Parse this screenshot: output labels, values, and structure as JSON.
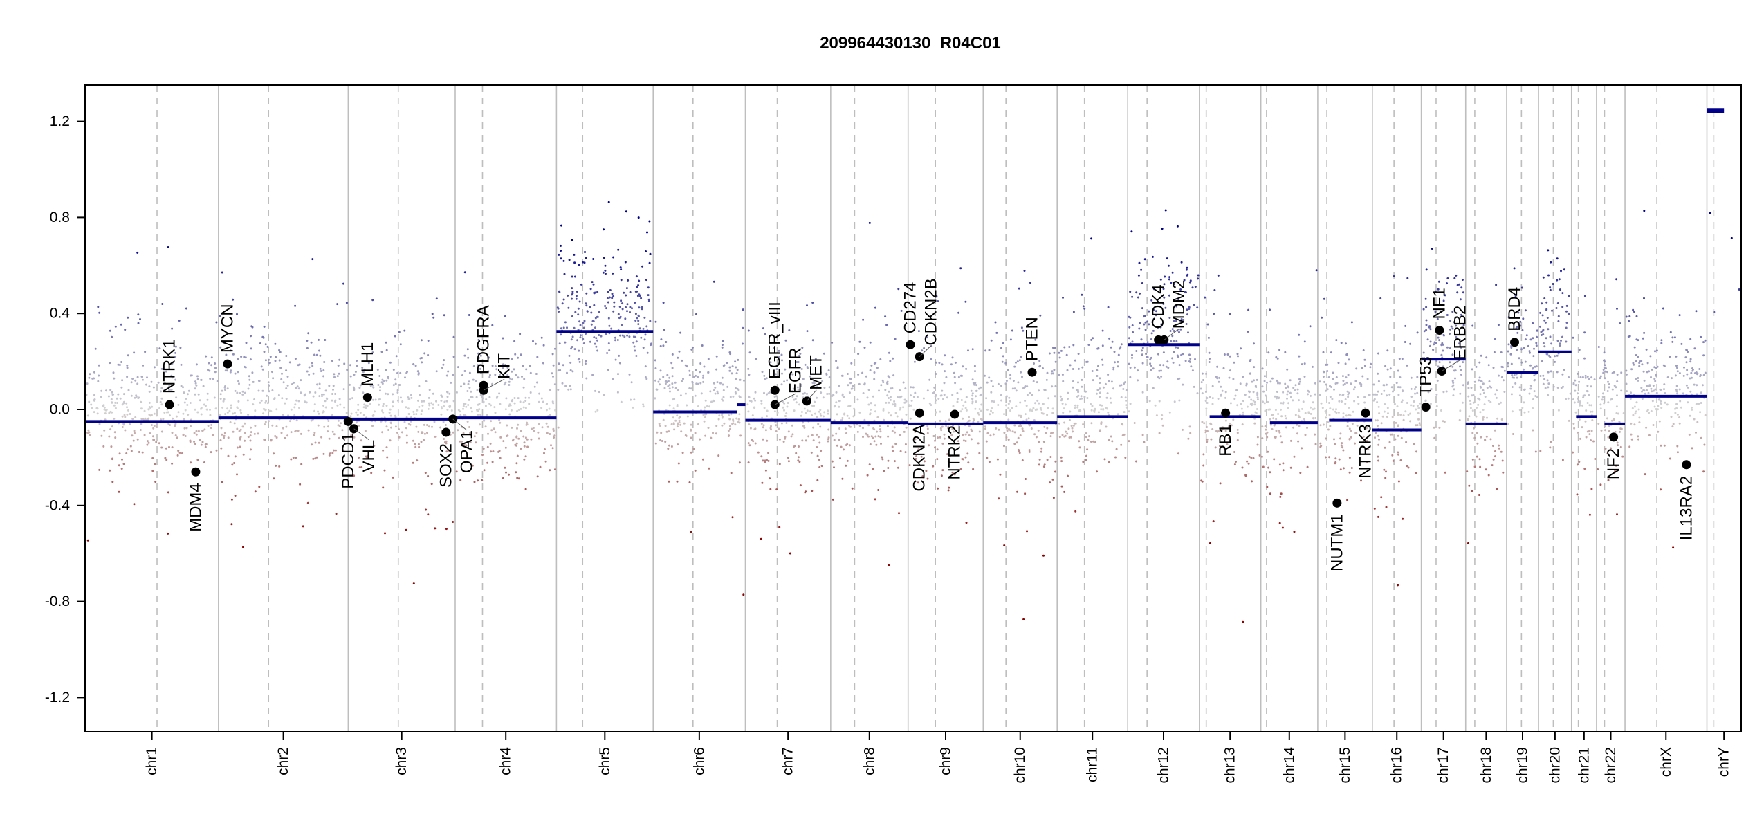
{
  "chart_data": {
    "type": "scatter",
    "title": "209964430130_R04C01",
    "xlabel": "",
    "ylabel": "",
    "ylim": [
      -1.35,
      1.35
    ],
    "y_ticks": [
      "1.2",
      "0.8",
      "0.4",
      "0.0",
      "-0.4",
      "-0.8",
      "-1.2"
    ],
    "y_tick_values": [
      1.2,
      0.8,
      0.4,
      0.0,
      -0.4,
      -0.8,
      -1.2
    ],
    "grid": false,
    "legend": "none",
    "colors": {
      "loss": "#8b0000",
      "neutral": "#d3d3d3",
      "gain": "#00008b",
      "segment": "#00008b",
      "gene": "#000000",
      "chromosome_line": "#bebebe"
    },
    "chromosomes": [
      "chr1",
      "chr2",
      "chr3",
      "chr4",
      "chr5",
      "chr6",
      "chr7",
      "chr8",
      "chr9",
      "chr10",
      "chr11",
      "chr12",
      "chr13",
      "chr14",
      "chr15",
      "chr16",
      "chr17",
      "chr18",
      "chr19",
      "chr20",
      "chr21",
      "chr22",
      "chrX",
      "chrY"
    ],
    "segments": [
      {
        "chr": "chr1",
        "value": -0.05
      },
      {
        "chr": "chr2",
        "value": -0.035
      },
      {
        "chr": "chr3",
        "value": -0.04
      },
      {
        "chr": "chr4",
        "value": -0.035
      },
      {
        "chr": "chr5",
        "value": 0.325
      },
      {
        "chr": "chr6",
        "value": -0.01
      },
      {
        "chr": "chr6",
        "value": 0.02
      },
      {
        "chr": "chr7",
        "value": -0.045
      },
      {
        "chr": "chr8",
        "value": -0.055
      },
      {
        "chr": "chr9",
        "value": -0.06
      },
      {
        "chr": "chr10",
        "value": -0.055
      },
      {
        "chr": "chr11",
        "value": -0.03
      },
      {
        "chr": "chr12",
        "value": 0.27
      },
      {
        "chr": "chr13",
        "value": -0.03
      },
      {
        "chr": "chr14",
        "value": -0.055
      },
      {
        "chr": "chr15",
        "value": -0.045
      },
      {
        "chr": "chr16",
        "value": -0.085
      },
      {
        "chr": "chr17",
        "value": 0.21
      },
      {
        "chr": "chr18",
        "value": -0.06
      },
      {
        "chr": "chr19",
        "value": 0.155
      },
      {
        "chr": "chr20",
        "value": 0.24
      },
      {
        "chr": "chr21",
        "value": -0.03
      },
      {
        "chr": "chr22",
        "value": -0.06
      },
      {
        "chr": "chrX",
        "value": 0.055
      },
      {
        "chr": "chrY",
        "value": 1.24
      },
      {
        "chr": "chrY",
        "value": 1.25
      }
    ],
    "genes": [
      {
        "name": "NTRK1",
        "chr": "chr1",
        "value": 0.02
      },
      {
        "name": "MDM4",
        "chr": "chr1",
        "value": -0.26
      },
      {
        "name": "MYCN",
        "chr": "chr2",
        "value": 0.19
      },
      {
        "name": "PDCD1",
        "chr": "chr2",
        "value": -0.05
      },
      {
        "name": "VHL",
        "chr": "chr3",
        "value": -0.08
      },
      {
        "name": "MLH1",
        "chr": "chr3",
        "value": 0.05
      },
      {
        "name": "SOX2",
        "chr": "chr3",
        "value": -0.095
      },
      {
        "name": "OPA1",
        "chr": "chr3",
        "value": -0.04
      },
      {
        "name": "PDGFRA",
        "chr": "chr4",
        "value": 0.1
      },
      {
        "name": "KIT",
        "chr": "chr4",
        "value": 0.08
      },
      {
        "name": "EGFR_vIII",
        "chr": "chr7",
        "value": 0.08
      },
      {
        "name": "EGFR",
        "chr": "chr7",
        "value": 0.02
      },
      {
        "name": "MET",
        "chr": "chr7",
        "value": 0.035
      },
      {
        "name": "CD274",
        "chr": "chr9",
        "value": 0.27
      },
      {
        "name": "CDKN2B",
        "chr": "chr9",
        "value": 0.22
      },
      {
        "name": "CDKN2A",
        "chr": "chr9",
        "value": -0.015
      },
      {
        "name": "NTRK2",
        "chr": "chr9",
        "value": -0.02
      },
      {
        "name": "PTEN",
        "chr": "chr10",
        "value": 0.155
      },
      {
        "name": "CDK4",
        "chr": "chr12",
        "value": 0.29
      },
      {
        "name": "MDM2",
        "chr": "chr12",
        "value": 0.29
      },
      {
        "name": "RB1",
        "chr": "chr13",
        "value": -0.015
      },
      {
        "name": "NUTM1",
        "chr": "chr15",
        "value": -0.39
      },
      {
        "name": "NTRK3",
        "chr": "chr15",
        "value": -0.015
      },
      {
        "name": "TP53",
        "chr": "chr17",
        "value": 0.01
      },
      {
        "name": "NF1",
        "chr": "chr17",
        "value": 0.33
      },
      {
        "name": "ERBB2",
        "chr": "chr17",
        "value": 0.16
      },
      {
        "name": "BRD4",
        "chr": "chr19",
        "value": 0.28
      },
      {
        "name": "NF2",
        "chr": "chr22",
        "value": -0.115
      },
      {
        "name": "IL13RA2",
        "chr": "chrX",
        "value": -0.23
      }
    ]
  }
}
